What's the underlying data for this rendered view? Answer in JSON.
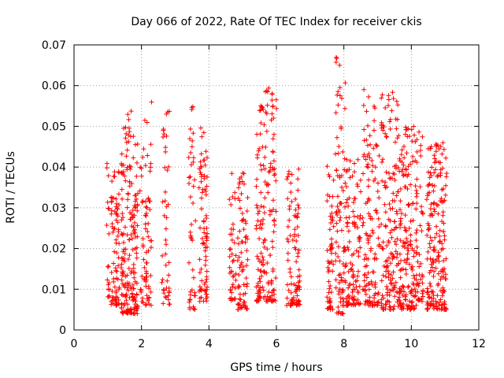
{
  "chart_data": {
    "type": "scatter",
    "title": "Day 066 of 2022, Rate Of TEC Index for receiver ckis",
    "xlabel": "GPS time / hours",
    "ylabel": "ROTI / TECUs",
    "xlim": [
      0,
      12
    ],
    "ylim": [
      0,
      0.07
    ],
    "xticks": [
      0,
      2,
      4,
      6,
      8,
      10,
      12
    ],
    "yticks": [
      0,
      0.01,
      0.02,
      0.03,
      0.04,
      0.05,
      0.06,
      0.07
    ],
    "xtick_labels": [
      "0",
      "2",
      "4",
      "6",
      "8",
      "10",
      "12"
    ],
    "ytick_labels": [
      "0",
      "0.01",
      "0.02",
      "0.03",
      "0.04",
      "0.05",
      "0.06",
      "0.07"
    ],
    "grid": true,
    "marker": "+",
    "color": "#ff0000",
    "clusters": [
      {
        "x": [
          0.95,
          1.05
        ],
        "y": [
          0.008,
          0.044
        ],
        "n": 18
      },
      {
        "x": [
          1.1,
          1.35
        ],
        "y": [
          0.006,
          0.04
        ],
        "n": 75
      },
      {
        "x": [
          1.4,
          1.9
        ],
        "y": [
          0.004,
          0.054
        ],
        "n": 200
      },
      {
        "x": [
          1.95,
          2.3
        ],
        "y": [
          0.006,
          0.056
        ],
        "n": 75
      },
      {
        "x": [
          2.6,
          2.85
        ],
        "y": [
          0.006,
          0.054
        ],
        "n": 45
      },
      {
        "x": [
          3.4,
          3.6
        ],
        "y": [
          0.005,
          0.056
        ],
        "n": 45
      },
      {
        "x": [
          3.7,
          3.95
        ],
        "y": [
          0.007,
          0.05
        ],
        "n": 80
      },
      {
        "x": [
          4.6,
          4.8
        ],
        "y": [
          0.007,
          0.04
        ],
        "n": 40
      },
      {
        "x": [
          4.85,
          5.15
        ],
        "y": [
          0.005,
          0.04
        ],
        "n": 75
      },
      {
        "x": [
          5.4,
          5.65
        ],
        "y": [
          0.007,
          0.057
        ],
        "n": 80
      },
      {
        "x": [
          5.65,
          6.0
        ],
        "y": [
          0.007,
          0.06
        ],
        "n": 90
      },
      {
        "x": [
          6.3,
          6.7
        ],
        "y": [
          0.006,
          0.04
        ],
        "n": 95
      },
      {
        "x": [
          7.5,
          7.7
        ],
        "y": [
          0.005,
          0.041
        ],
        "n": 55
      },
      {
        "x": [
          7.75,
          8.05
        ],
        "y": [
          0.004,
          0.067
        ],
        "n": 90
      },
      {
        "x": [
          8.05,
          8.5
        ],
        "y": [
          0.006,
          0.042
        ],
        "n": 110
      },
      {
        "x": [
          8.55,
          9.05
        ],
        "y": [
          0.006,
          0.06
        ],
        "n": 130
      },
      {
        "x": [
          9.1,
          9.6
        ],
        "y": [
          0.005,
          0.059
        ],
        "n": 150
      },
      {
        "x": [
          9.6,
          10.15
        ],
        "y": [
          0.005,
          0.051
        ],
        "n": 170
      },
      {
        "x": [
          10.15,
          10.35
        ],
        "y": [
          0.007,
          0.049
        ],
        "n": 50
      },
      {
        "x": [
          10.45,
          11.05
        ],
        "y": [
          0.005,
          0.046
        ],
        "n": 200
      }
    ]
  }
}
